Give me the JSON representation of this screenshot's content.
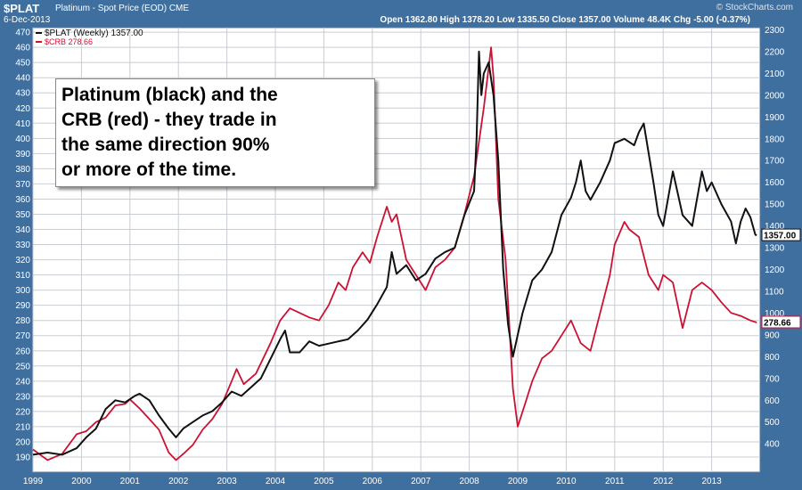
{
  "header": {
    "symbol": "$PLAT",
    "description": "Platinum  - Spot Price (EOD) CME",
    "date": "6-Dec-2013",
    "ohlc": "Open 1362.80  High 1378.20  Low 1335.50  Close 1357.00  Volume 48.4K  Chg -5.00 (-0.37%)",
    "brand": "© StockCharts.com"
  },
  "annotation": "Platinum (black) and the\nCRB (red)  - they trade in\nthe same direction 90%\nor more of the time.",
  "colors": {
    "frame": "#3f6f9f",
    "plot_bg": "#ffffff",
    "grid": "#c8cdd4",
    "plat": "#111111",
    "crb": "#cc1133"
  },
  "chart_data": {
    "type": "line",
    "x_ticks": [
      "1999",
      "2000",
      "2001",
      "2002",
      "2003",
      "2004",
      "2005",
      "2006",
      "2007",
      "2008",
      "2009",
      "2010",
      "2011",
      "2012",
      "2013"
    ],
    "x_range": [
      1999.0,
      2014.0
    ],
    "left_axis": {
      "ticks": [
        190,
        200,
        210,
        220,
        230,
        240,
        250,
        260,
        270,
        280,
        290,
        300,
        310,
        320,
        330,
        340,
        350,
        360,
        370,
        380,
        390,
        400,
        410,
        420,
        430,
        440,
        450,
        460,
        470
      ],
      "range": [
        180,
        473
      ]
    },
    "right_axis": {
      "ticks": [
        400,
        500,
        600,
        700,
        800,
        900,
        1000,
        1100,
        1200,
        1300,
        1400,
        1500,
        1600,
        1700,
        1800,
        1900,
        2000,
        2100,
        2200,
        2300
      ],
      "range": [
        270,
        2310
      ]
    },
    "series": [
      {
        "name": "$PLAT (Weekly) 1357.00",
        "axis": "right",
        "last_label": "1357.00",
        "points": [
          [
            1999.0,
            350
          ],
          [
            1999.3,
            360
          ],
          [
            1999.6,
            350
          ],
          [
            1999.9,
            380
          ],
          [
            2000.1,
            430
          ],
          [
            2000.3,
            470
          ],
          [
            2000.5,
            560
          ],
          [
            2000.7,
            600
          ],
          [
            2000.9,
            590
          ],
          [
            2001.1,
            620
          ],
          [
            2001.2,
            630
          ],
          [
            2001.4,
            600
          ],
          [
            2001.6,
            530
          ],
          [
            2001.8,
            470
          ],
          [
            2001.95,
            430
          ],
          [
            2002.1,
            470
          ],
          [
            2002.3,
            500
          ],
          [
            2002.5,
            530
          ],
          [
            2002.7,
            550
          ],
          [
            2002.9,
            590
          ],
          [
            2003.1,
            640
          ],
          [
            2003.3,
            620
          ],
          [
            2003.5,
            660
          ],
          [
            2003.7,
            700
          ],
          [
            2003.9,
            790
          ],
          [
            2004.1,
            880
          ],
          [
            2004.2,
            920
          ],
          [
            2004.3,
            820
          ],
          [
            2004.5,
            820
          ],
          [
            2004.7,
            870
          ],
          [
            2004.9,
            850
          ],
          [
            2005.1,
            860
          ],
          [
            2005.3,
            870
          ],
          [
            2005.5,
            880
          ],
          [
            2005.7,
            920
          ],
          [
            2005.9,
            970
          ],
          [
            2006.1,
            1040
          ],
          [
            2006.3,
            1120
          ],
          [
            2006.4,
            1280
          ],
          [
            2006.5,
            1180
          ],
          [
            2006.7,
            1220
          ],
          [
            2006.9,
            1150
          ],
          [
            2007.1,
            1180
          ],
          [
            2007.3,
            1250
          ],
          [
            2007.5,
            1280
          ],
          [
            2007.7,
            1300
          ],
          [
            2007.9,
            1450
          ],
          [
            2008.1,
            1560
          ],
          [
            2008.15,
            1800
          ],
          [
            2008.2,
            2200
          ],
          [
            2008.25,
            2000
          ],
          [
            2008.3,
            2100
          ],
          [
            2008.4,
            2150
          ],
          [
            2008.5,
            2000
          ],
          [
            2008.6,
            1700
          ],
          [
            2008.7,
            1200
          ],
          [
            2008.8,
            950
          ],
          [
            2008.9,
            800
          ],
          [
            2008.95,
            850
          ],
          [
            2009.1,
            1000
          ],
          [
            2009.3,
            1150
          ],
          [
            2009.5,
            1200
          ],
          [
            2009.7,
            1280
          ],
          [
            2009.9,
            1450
          ],
          [
            2010.1,
            1530
          ],
          [
            2010.2,
            1600
          ],
          [
            2010.3,
            1700
          ],
          [
            2010.4,
            1560
          ],
          [
            2010.5,
            1520
          ],
          [
            2010.7,
            1600
          ],
          [
            2010.9,
            1700
          ],
          [
            2011.0,
            1780
          ],
          [
            2011.2,
            1800
          ],
          [
            2011.4,
            1770
          ],
          [
            2011.5,
            1830
          ],
          [
            2011.6,
            1870
          ],
          [
            2011.8,
            1600
          ],
          [
            2011.9,
            1450
          ],
          [
            2012.0,
            1400
          ],
          [
            2012.2,
            1650
          ],
          [
            2012.4,
            1450
          ],
          [
            2012.6,
            1400
          ],
          [
            2012.8,
            1650
          ],
          [
            2012.9,
            1560
          ],
          [
            2013.0,
            1600
          ],
          [
            2013.2,
            1500
          ],
          [
            2013.4,
            1420
          ],
          [
            2013.5,
            1320
          ],
          [
            2013.6,
            1420
          ],
          [
            2013.7,
            1480
          ],
          [
            2013.8,
            1440
          ],
          [
            2013.9,
            1360
          ],
          [
            2013.93,
            1357
          ]
        ]
      },
      {
        "name": "$CRB 278.66",
        "axis": "left",
        "last_label": "278.66",
        "points": [
          [
            1999.0,
            195
          ],
          [
            1999.3,
            188
          ],
          [
            1999.6,
            192
          ],
          [
            1999.9,
            205
          ],
          [
            2000.1,
            207
          ],
          [
            2000.3,
            213
          ],
          [
            2000.5,
            216
          ],
          [
            2000.7,
            224
          ],
          [
            2000.9,
            225
          ],
          [
            2001.0,
            228
          ],
          [
            2001.2,
            222
          ],
          [
            2001.4,
            215
          ],
          [
            2001.6,
            208
          ],
          [
            2001.8,
            193
          ],
          [
            2001.95,
            188
          ],
          [
            2002.1,
            192
          ],
          [
            2002.3,
            198
          ],
          [
            2002.5,
            208
          ],
          [
            2002.7,
            215
          ],
          [
            2002.9,
            225
          ],
          [
            2003.1,
            240
          ],
          [
            2003.2,
            248
          ],
          [
            2003.35,
            238
          ],
          [
            2003.6,
            245
          ],
          [
            2003.9,
            265
          ],
          [
            2004.1,
            280
          ],
          [
            2004.3,
            288
          ],
          [
            2004.5,
            285
          ],
          [
            2004.7,
            282
          ],
          [
            2004.9,
            280
          ],
          [
            2005.1,
            290
          ],
          [
            2005.3,
            305
          ],
          [
            2005.45,
            300
          ],
          [
            2005.6,
            315
          ],
          [
            2005.8,
            325
          ],
          [
            2005.95,
            318
          ],
          [
            2006.1,
            335
          ],
          [
            2006.3,
            355
          ],
          [
            2006.4,
            345
          ],
          [
            2006.5,
            350
          ],
          [
            2006.7,
            320
          ],
          [
            2006.9,
            310
          ],
          [
            2007.1,
            300
          ],
          [
            2007.3,
            315
          ],
          [
            2007.5,
            320
          ],
          [
            2007.7,
            328
          ],
          [
            2007.9,
            350
          ],
          [
            2008.1,
            375
          ],
          [
            2008.3,
            420
          ],
          [
            2008.45,
            460
          ],
          [
            2008.5,
            440
          ],
          [
            2008.6,
            360
          ],
          [
            2008.75,
            320
          ],
          [
            2008.9,
            235
          ],
          [
            2009.0,
            210
          ],
          [
            2009.15,
            225
          ],
          [
            2009.3,
            240
          ],
          [
            2009.5,
            255
          ],
          [
            2009.7,
            260
          ],
          [
            2009.9,
            270
          ],
          [
            2010.1,
            280
          ],
          [
            2010.3,
            265
          ],
          [
            2010.5,
            260
          ],
          [
            2010.7,
            285
          ],
          [
            2010.9,
            310
          ],
          [
            2011.0,
            330
          ],
          [
            2011.2,
            345
          ],
          [
            2011.3,
            340
          ],
          [
            2011.5,
            335
          ],
          [
            2011.7,
            310
          ],
          [
            2011.9,
            300
          ],
          [
            2012.0,
            310
          ],
          [
            2012.2,
            305
          ],
          [
            2012.4,
            275
          ],
          [
            2012.6,
            300
          ],
          [
            2012.8,
            305
          ],
          [
            2013.0,
            300
          ],
          [
            2013.2,
            292
          ],
          [
            2013.4,
            285
          ],
          [
            2013.6,
            283
          ],
          [
            2013.8,
            280
          ],
          [
            2013.93,
            278.66
          ]
        ]
      }
    ]
  }
}
